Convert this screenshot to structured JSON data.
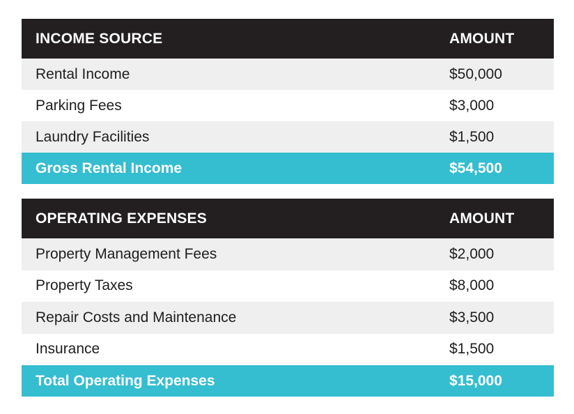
{
  "income": {
    "header": {
      "label": "INCOME SOURCE",
      "amount": "AMOUNT"
    },
    "rows": [
      {
        "label": "Rental Income",
        "amount": "$50,000"
      },
      {
        "label": "Parking Fees",
        "amount": "$3,000"
      },
      {
        "label": "Laundry Facilities",
        "amount": "$1,500"
      }
    ],
    "total": {
      "label": "Gross Rental Income",
      "amount": "$54,500"
    }
  },
  "expenses": {
    "header": {
      "label": "OPERATING EXPENSES",
      "amount": "AMOUNT"
    },
    "rows": [
      {
        "label": "Property Management Fees",
        "amount": "$2,000"
      },
      {
        "label": "Property Taxes",
        "amount": "$8,000"
      },
      {
        "label": "Repair Costs and Maintenance",
        "amount": "$3,500"
      },
      {
        "label": "Insurance",
        "amount": "$1,500"
      }
    ],
    "total": {
      "label": "Total Operating Expenses",
      "amount": "$15,000"
    }
  },
  "colors": {
    "header_bg": "#231f20",
    "total_bg": "#35bdd0",
    "stripe_bg": "#efefef"
  }
}
